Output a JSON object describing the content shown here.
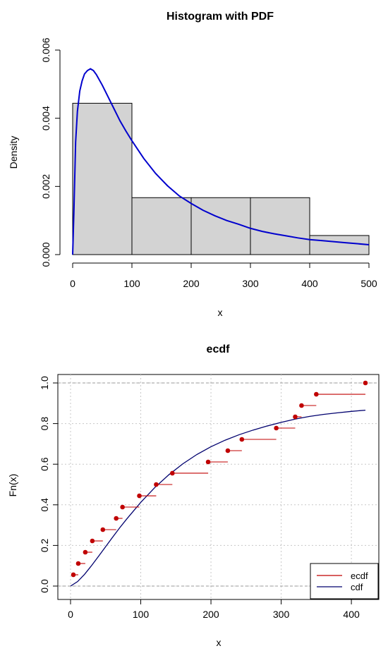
{
  "chart_data": [
    {
      "type": "bar",
      "title": "Histogram with PDF",
      "xlabel": "x",
      "ylabel": "Density",
      "xlim": [
        0,
        500
      ],
      "ylim": [
        0,
        0.006
      ],
      "x_ticks": [
        "0",
        "100",
        "200",
        "300",
        "400",
        "500"
      ],
      "y_ticks": [
        "0.000",
        "0.002",
        "0.004",
        "0.006"
      ],
      "bins": [
        {
          "from": 0,
          "to": 100,
          "density": 0.00444
        },
        {
          "from": 100,
          "to": 200,
          "density": 0.00167
        },
        {
          "from": 200,
          "to": 300,
          "density": 0.00167
        },
        {
          "from": 300,
          "to": 400,
          "density": 0.00167
        },
        {
          "from": 400,
          "to": 500,
          "density": 0.00056
        }
      ],
      "bar_color": "#d3d3d3",
      "curve": {
        "color": "#0000cd",
        "x": [
          0,
          2,
          5,
          8,
          12,
          16,
          20,
          25,
          30,
          35,
          40,
          50,
          60,
          70,
          80,
          90,
          100,
          120,
          140,
          160,
          180,
          200,
          220,
          240,
          260,
          280,
          300,
          320,
          340,
          360,
          380,
          400,
          420,
          440,
          460,
          480,
          500
        ],
        "y": [
          0,
          0.0012,
          0.0033,
          0.0042,
          0.0048,
          0.0051,
          0.0053,
          0.0054,
          0.00545,
          0.0054,
          0.00528,
          0.00497,
          0.00462,
          0.00427,
          0.00392,
          0.00362,
          0.00334,
          0.00282,
          0.00238,
          0.00202,
          0.00172,
          0.0015,
          0.0013,
          0.00114,
          0.001,
          0.00089,
          0.00077,
          0.00068,
          0.00061,
          0.00055,
          0.00049,
          0.00044,
          0.00041,
          0.00038,
          0.00035,
          0.00032,
          0.00029
        ]
      }
    },
    {
      "type": "line",
      "title": "ecdf",
      "xlabel": "x",
      "ylabel": "Fn(x)",
      "xlim": [
        0,
        420
      ],
      "ylim": [
        0,
        1
      ],
      "x_ticks": [
        "0",
        "100",
        "200",
        "300",
        "400"
      ],
      "y_ticks": [
        "0.0",
        "0.2",
        "0.4",
        "0.6",
        "0.8",
        "1.0"
      ],
      "grid": true,
      "legend_position": "bottom-right",
      "series": [
        {
          "name": "ecdf",
          "color": "#c00000",
          "x": [
            4,
            11,
            21,
            31,
            46,
            65,
            74,
            98,
            122,
            145,
            196,
            224,
            244,
            293,
            320,
            329,
            350,
            420
          ],
          "y": [
            0.0556,
            0.1111,
            0.1667,
            0.2222,
            0.2778,
            0.3333,
            0.3889,
            0.4444,
            0.5,
            0.5556,
            0.6111,
            0.6667,
            0.7222,
            0.7778,
            0.8333,
            0.8889,
            0.9444,
            1.0
          ]
        },
        {
          "name": "cdf",
          "color": "#00006e",
          "x": [
            0,
            10,
            20,
            30,
            40,
            50,
            60,
            70,
            80,
            100,
            120,
            140,
            160,
            180,
            200,
            220,
            240,
            260,
            280,
            300,
            320,
            340,
            360,
            380,
            400,
            420
          ],
          "y": [
            0,
            0.022,
            0.058,
            0.101,
            0.147,
            0.194,
            0.241,
            0.287,
            0.33,
            0.412,
            0.485,
            0.548,
            0.602,
            0.648,
            0.686,
            0.718,
            0.745,
            0.768,
            0.788,
            0.806,
            0.822,
            0.835,
            0.845,
            0.853,
            0.86,
            0.866
          ]
        }
      ]
    }
  ]
}
